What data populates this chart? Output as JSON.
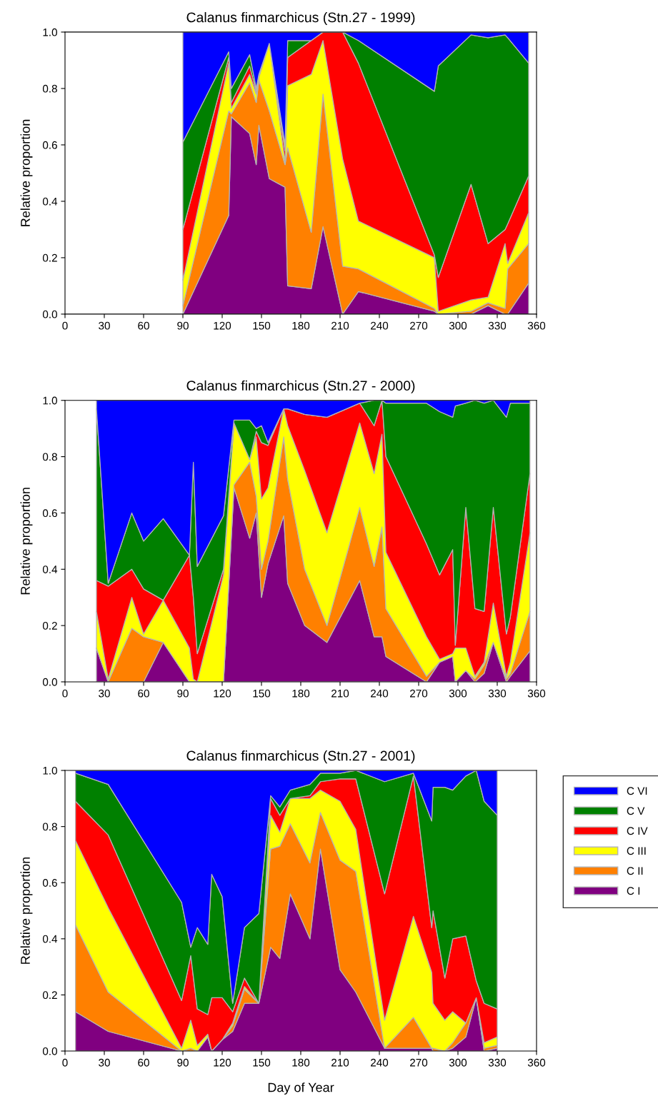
{
  "chart_data": [
    {
      "type": "area",
      "stacked": true,
      "title": "Calanus finmarchicus (Stn.27 - 1999)",
      "ylabel": "Relative proportion",
      "x": [
        90,
        125,
        127,
        141,
        146,
        148,
        156,
        168,
        170,
        188,
        197,
        212,
        224,
        282,
        285,
        310,
        323,
        336,
        338,
        354
      ],
      "series": [
        {
          "color": "#800080",
          "values": [
            0,
            0.35,
            0.7,
            0.64,
            0.53,
            0.67,
            0.48,
            0.45,
            0.1,
            0.09,
            0.31,
            0,
            0.08,
            0.01,
            0,
            0,
            0.03,
            0,
            0,
            0.11
          ]
        },
        {
          "color": "#ff8000",
          "values": [
            0.03,
            0.37,
            0.01,
            0.18,
            0.22,
            0.16,
            0.24,
            0.08,
            0.49,
            0.2,
            0.47,
            0.17,
            0.08,
            0.01,
            0,
            0.01,
            0.01,
            0.02,
            0.16,
            0.14
          ]
        },
        {
          "color": "#ffff00",
          "values": [
            0.09,
            0.17,
            0.02,
            0.03,
            0.03,
            0.01,
            0.24,
            0.01,
            0.22,
            0.56,
            0.19,
            0.38,
            0.17,
            0.18,
            0.01,
            0.04,
            0.02,
            0.23,
            0.02,
            0.11
          ]
        },
        {
          "color": "#ff0000",
          "values": [
            0.18,
            0.02,
            0.02,
            0.03,
            0.01,
            0.01,
            0,
            0.04,
            0.1,
            0.12,
            0.03,
            0.45,
            0.56,
            0.01,
            0.12,
            0.41,
            0.19,
            0.05,
            0.14,
            0.13
          ]
        },
        {
          "color": "#008000",
          "values": [
            0.31,
            0.02,
            0.05,
            0.04,
            0.01,
            0,
            0,
            0.02,
            0.06,
            0,
            0,
            0,
            0.08,
            0.58,
            0.75,
            0.53,
            0.73,
            0.69,
            0.66,
            0.4
          ]
        },
        {
          "color": "#0000ff",
          "values": [
            0.39,
            0.07,
            0.2,
            0.08,
            0.2,
            0.15,
            0.04,
            0.4,
            0.03,
            0.03,
            0,
            0,
            0.03,
            0.21,
            0.12,
            0.01,
            0.02,
            0.01,
            0.02,
            0.11
          ]
        }
      ],
      "xlim": [
        0,
        360
      ],
      "xticks": [
        0,
        30,
        60,
        90,
        120,
        150,
        180,
        210,
        240,
        270,
        300,
        330,
        360
      ],
      "ylim": [
        0,
        1
      ],
      "yticks": [
        {
          "value": 0,
          "label": "0.0"
        },
        {
          "value": 0.2,
          "label": "0.2"
        },
        {
          "value": 0.4,
          "label": "0.4"
        },
        {
          "value": 0.6,
          "label": "0.6"
        },
        {
          "value": 0.8,
          "label": "0.8"
        },
        {
          "value": 1,
          "label": "1.0"
        }
      ]
    },
    {
      "type": "area",
      "stacked": true,
      "title": "Calanus finmarchicus (Stn.27 - 2000)",
      "ylabel": "Relative proportion",
      "x": [
        24,
        33,
        51,
        60,
        75,
        95,
        98,
        101,
        121,
        129,
        141,
        146,
        150,
        155,
        167,
        170,
        183,
        200,
        225,
        236,
        242,
        245,
        276,
        286,
        296,
        298,
        306,
        313,
        320,
        327,
        337,
        340,
        355
      ],
      "series": [
        {
          "color": "#800080",
          "values": [
            0.12,
            0,
            0,
            0,
            0.14,
            0,
            0,
            0,
            0,
            0.69,
            0.51,
            0.6,
            0.3,
            0.42,
            0.59,
            0.35,
            0.2,
            0.14,
            0.36,
            0.16,
            0.16,
            0.09,
            0,
            0.07,
            0.09,
            0,
            0.04,
            0,
            0.03,
            0.14,
            0,
            0.02,
            0.11
          ]
        },
        {
          "color": "#ff8000",
          "values": [
            0,
            0,
            0.19,
            0.16,
            0,
            0,
            0,
            0,
            0,
            0.01,
            0.27,
            0.06,
            0.1,
            0.08,
            0.28,
            0.37,
            0.2,
            0.06,
            0.26,
            0.25,
            0.39,
            0.17,
            0.02,
            0,
            0,
            0,
            0,
            0.01,
            0.03,
            0,
            0.01,
            0.01,
            0.14
          ]
        },
        {
          "color": "#ffff00",
          "values": [
            0.13,
            0.01,
            0.11,
            0.01,
            0.15,
            0.12,
            0.01,
            0,
            0.38,
            0.22,
            0.01,
            0.21,
            0.25,
            0.19,
            0.1,
            0.19,
            0.35,
            0.33,
            0.3,
            0.33,
            0.33,
            0.2,
            0.14,
            0.01,
            0.01,
            0.12,
            0.08,
            0.01,
            0.01,
            0.14,
            0.01,
            0.04,
            0.28
          ]
        },
        {
          "color": "#ff0000",
          "values": [
            0.11,
            0.33,
            0.1,
            0.16,
            0,
            0.33,
            0.29,
            0.1,
            0.02,
            0,
            0,
            0.02,
            0.2,
            0.15,
            0,
            0.06,
            0.2,
            0.41,
            0.07,
            0.17,
            0.12,
            0.34,
            0.33,
            0.3,
            0.37,
            0.01,
            0.5,
            0.24,
            0.18,
            0.34,
            0.15,
            0.16,
            0.21
          ]
        },
        {
          "color": "#008000",
          "values": [
            0.61,
            0.01,
            0.2,
            0.17,
            0.29,
            0,
            0.48,
            0.31,
            0.19,
            0.01,
            0.14,
            0.01,
            0.06,
            0.01,
            0,
            0,
            0,
            0,
            0,
            0.09,
            0,
            0.19,
            0.5,
            0.58,
            0.47,
            0.85,
            0.37,
            0.74,
            0.74,
            0.38,
            0.77,
            0.76,
            0.25
          ]
        },
        {
          "color": "#0000ff",
          "values": [
            0.03,
            0.65,
            0.4,
            0.5,
            0.42,
            0.55,
            0.22,
            0.59,
            0.41,
            0.07,
            0.07,
            0.1,
            0.09,
            0.15,
            0.03,
            0.03,
            0.05,
            0.06,
            0.01,
            0,
            0,
            0.01,
            0.01,
            0.04,
            0.06,
            0.02,
            0.01,
            0,
            0.01,
            0,
            0.06,
            0.01,
            0.01
          ]
        }
      ],
      "xlim": [
        0,
        360
      ],
      "xticks": [
        0,
        30,
        60,
        90,
        120,
        150,
        180,
        210,
        240,
        270,
        300,
        330,
        360
      ],
      "ylim": [
        0,
        1
      ],
      "yticks": [
        {
          "value": 0,
          "label": "0.0"
        },
        {
          "value": 0.2,
          "label": "0.2"
        },
        {
          "value": 0.4,
          "label": "0.4"
        },
        {
          "value": 0.6,
          "label": "0.6"
        },
        {
          "value": 0.8,
          "label": "0.8"
        },
        {
          "value": 1,
          "label": "1.0"
        }
      ]
    },
    {
      "type": "area",
      "stacked": true,
      "title": "Calanus finmarchicus (Stn.27 - 2001)",
      "xlabel": "Day of Year",
      "ylabel": "Relative proportion",
      "legend": "right",
      "x": [
        8,
        33,
        89,
        96,
        101,
        109,
        112,
        120,
        128,
        137,
        148,
        157,
        164,
        172,
        187,
        195,
        210,
        222,
        244,
        266,
        280,
        281,
        290,
        296,
        306,
        314,
        320,
        330
      ],
      "series": [
        {
          "name": "C I",
          "color": "#800080",
          "values": [
            0.14,
            0.07,
            0,
            0,
            0,
            0.05,
            0,
            0.04,
            0.07,
            0.17,
            0.17,
            0.37,
            0.33,
            0.56,
            0.4,
            0.72,
            0.29,
            0.21,
            0.01,
            0.01,
            0.01,
            0,
            0,
            0.01,
            0.05,
            0.19,
            0,
            0.01
          ]
        },
        {
          "name": "C II",
          "color": "#ff8000",
          "values": [
            0.31,
            0.14,
            0,
            0.01,
            0,
            0,
            0,
            0,
            0.02,
            0.05,
            0,
            0.35,
            0.4,
            0.25,
            0.27,
            0.13,
            0.39,
            0.43,
            0,
            0.11,
            0,
            0.01,
            0,
            0.02,
            0.05,
            0,
            0.01,
            0.01
          ]
        },
        {
          "name": "C III",
          "color": "#ffff00",
          "values": [
            0.3,
            0.3,
            0.01,
            0.1,
            0.02,
            0.01,
            0,
            0,
            0.01,
            0.01,
            0,
            0.12,
            0.05,
            0.09,
            0.23,
            0.08,
            0.21,
            0.15,
            0.1,
            0.36,
            0.27,
            0.16,
            0.11,
            0.11,
            0,
            0,
            0.02,
            0.03
          ]
        },
        {
          "name": "C IV",
          "color": "#ff0000",
          "values": [
            0.14,
            0.26,
            0.17,
            0.23,
            0.13,
            0.07,
            0.19,
            0.15,
            0.04,
            0.03,
            0,
            0.06,
            0.06,
            0,
            0.01,
            0.03,
            0.08,
            0.18,
            0.45,
            0.5,
            0.16,
            0.33,
            0.15,
            0.26,
            0.31,
            0.06,
            0.14,
            0.1
          ]
        },
        {
          "name": "C V",
          "color": "#008000",
          "values": [
            0.1,
            0.18,
            0.35,
            0.03,
            0.29,
            0.25,
            0.44,
            0.36,
            0.03,
            0.18,
            0.32,
            0.01,
            0.03,
            0.03,
            0.04,
            0.03,
            0.02,
            0.03,
            0.4,
            0.01,
            0.38,
            0.44,
            0.68,
            0.53,
            0.57,
            0.75,
            0.72,
            0.69
          ]
        },
        {
          "name": "C VI",
          "color": "#0000ff",
          "values": [
            0.01,
            0.05,
            0.47,
            0.63,
            0.56,
            0.62,
            0.37,
            0.45,
            0.83,
            0.56,
            0.51,
            0.09,
            0.13,
            0.07,
            0.05,
            0.01,
            0.01,
            0,
            0.04,
            0.01,
            0.18,
            0.06,
            0.06,
            0.07,
            0.02,
            0,
            0.11,
            0.16
          ]
        }
      ],
      "xlim": [
        0,
        360
      ],
      "xticks": [
        0,
        30,
        60,
        90,
        120,
        150,
        180,
        210,
        240,
        270,
        300,
        330,
        360
      ],
      "ylim": [
        0,
        1
      ],
      "yticks": [
        {
          "value": 0,
          "label": "0.0"
        },
        {
          "value": 0.2,
          "label": "0.2"
        },
        {
          "value": 0.4,
          "label": "0.4"
        },
        {
          "value": 0.6,
          "label": "0.6"
        },
        {
          "value": 0.8,
          "label": "0.8"
        },
        {
          "value": 1,
          "label": "1.0"
        }
      ]
    }
  ]
}
